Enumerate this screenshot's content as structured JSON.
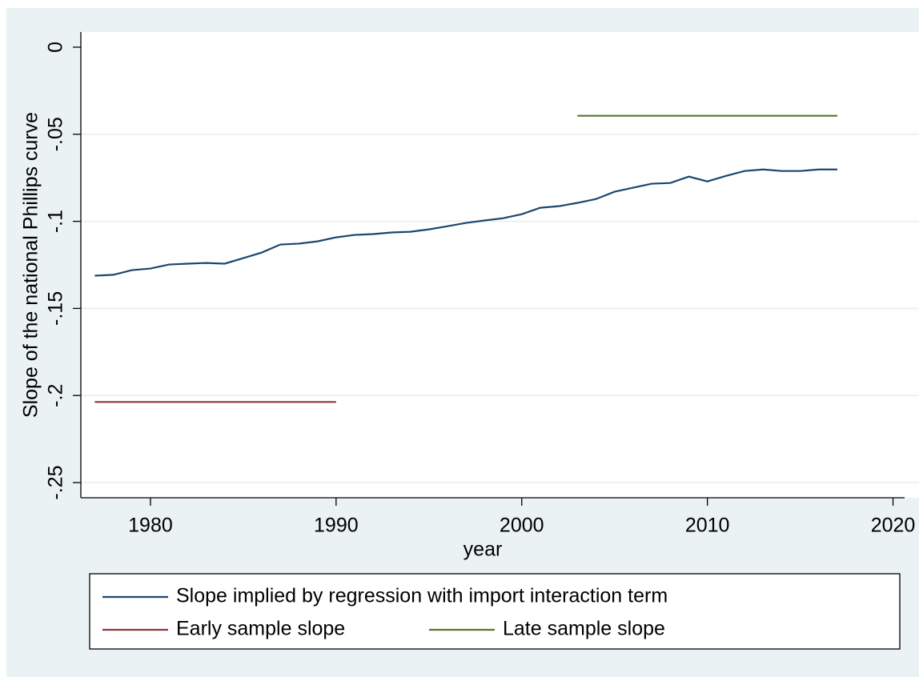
{
  "chart_data": {
    "type": "line",
    "x_label": "year",
    "y_label": "Slope of the national Phillips curve",
    "xlim": [
      1976.25,
      2021.4
    ],
    "xticks": [
      1980,
      1990,
      2000,
      2010,
      2020
    ],
    "ylim": [
      -0.2587,
      0.0087
    ],
    "yticks": [
      0,
      {
        "value": -0.05,
        "label": "-.05"
      },
      {
        "value": -0.1,
        "label": "-.1"
      },
      {
        "value": -0.15,
        "label": "-.15"
      },
      {
        "value": -0.2,
        "label": "-.2"
      },
      {
        "value": -0.25,
        "label": "-.25"
      }
    ],
    "grid": true,
    "legend": "bottom",
    "series": [
      {
        "name": "Slope implied by regression with import interaction term",
        "color": "#1a476f",
        "x": [
          1977,
          1978,
          1979,
          1980,
          1981,
          1982,
          1983,
          1984,
          1985,
          1986,
          1987,
          1988,
          1989,
          1990,
          1991,
          1992,
          1993,
          1994,
          1995,
          1996,
          1997,
          1998,
          1999,
          2000,
          2001,
          2002,
          2003,
          2004,
          2005,
          2006,
          2007,
          2008,
          2009,
          2010,
          2011,
          2012,
          2013,
          2014,
          2015,
          2016,
          2017
        ],
        "values": [
          -0.1312,
          -0.1307,
          -0.128,
          -0.1271,
          -0.1248,
          -0.1243,
          -0.1239,
          -0.1243,
          -0.1211,
          -0.1179,
          -0.1133,
          -0.1128,
          -0.1115,
          -0.1092,
          -0.1078,
          -0.1073,
          -0.1064,
          -0.106,
          -0.1046,
          -0.1028,
          -0.1009,
          -0.0995,
          -0.0982,
          -0.0959,
          -0.0922,
          -0.0913,
          -0.0894,
          -0.0872,
          -0.083,
          -0.0807,
          -0.0784,
          -0.078,
          -0.0743,
          -0.0771,
          -0.0739,
          -0.0711,
          -0.0702,
          -0.0711,
          -0.0711,
          -0.0702,
          -0.0702
        ]
      },
      {
        "name": "Early sample slope",
        "color": "#90353b",
        "x": [
          1977,
          1990
        ],
        "values": [
          -0.2037,
          -0.2037
        ]
      },
      {
        "name": "Late sample slope",
        "color": "#55752f",
        "x": [
          2003,
          2017
        ],
        "values": [
          -0.0394,
          -0.0394
        ]
      }
    ]
  }
}
